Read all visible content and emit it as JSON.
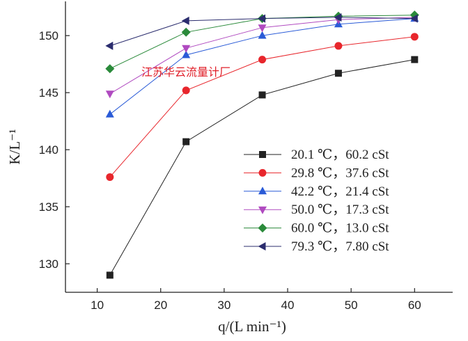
{
  "watermark": "江苏华云流量计厂",
  "colors": {
    "axis": "#222222"
  },
  "chart_data": {
    "type": "line",
    "xlabel": "q/(L min⁻¹)",
    "ylabel": "K/L⁻¹",
    "xlim": [
      5,
      66
    ],
    "ylim": [
      127.5,
      153
    ],
    "xticks": [
      10,
      20,
      30,
      40,
      50,
      60
    ],
    "yticks": [
      130,
      135,
      140,
      145,
      150
    ],
    "grid": false,
    "legend_position": "bottom-right",
    "x": [
      12,
      24,
      36,
      48,
      60
    ],
    "series": [
      {
        "name": "20.1 ℃，60.2 cSt",
        "values": [
          129.0,
          140.7,
          144.8,
          146.7,
          147.9
        ],
        "color": "#222222",
        "marker": "square"
      },
      {
        "name": "29.8 ℃，37.6 cSt",
        "values": [
          137.6,
          145.2,
          147.9,
          149.1,
          149.9
        ],
        "color": "#e8262c",
        "marker": "circle"
      },
      {
        "name": "42.2 ℃，21.4 cSt",
        "values": [
          143.1,
          148.3,
          150.0,
          151.0,
          151.5
        ],
        "color": "#2a5bd7",
        "marker": "triangle-up"
      },
      {
        "name": "50.0 ℃，17.3 cSt",
        "values": [
          144.9,
          148.9,
          150.7,
          151.4,
          151.6
        ],
        "color": "#b04ac0",
        "marker": "triangle-down"
      },
      {
        "name": "60.0 ℃，13.0 cSt",
        "values": [
          147.1,
          150.3,
          151.5,
          151.7,
          151.8
        ],
        "color": "#2a8a3a",
        "marker": "diamond"
      },
      {
        "name": "79.3 ℃，7.80 cSt",
        "values": [
          149.1,
          151.3,
          151.5,
          151.6,
          151.5
        ],
        "color": "#2b2d6e",
        "marker": "triangle-left"
      }
    ]
  }
}
